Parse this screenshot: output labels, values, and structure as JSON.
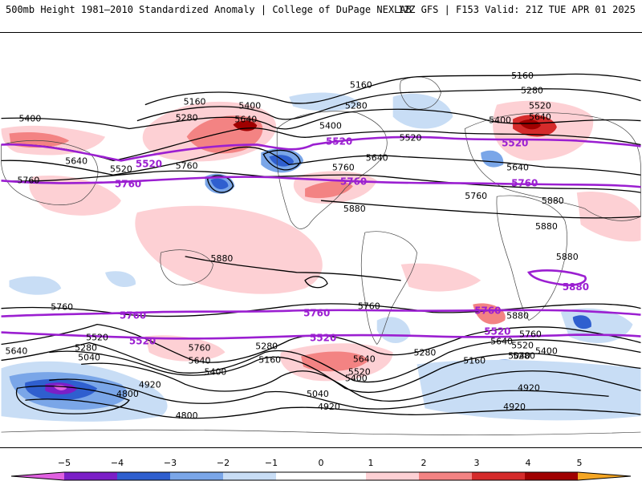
{
  "header": {
    "title": "500mb Height 1981–2010 Standardized Anomaly | College of DuPage NEXLAB",
    "run_info": "12Z GFS | F153 Valid: 21Z TUE APR 01 2025"
  },
  "colors": {
    "pos1": "#fdd0d4",
    "pos2": "#f38383",
    "pos3": "#d52b2b",
    "pos4": "#a00000",
    "pos5": "#f5a623",
    "neg1": "#c8ddf5",
    "neg2": "#7aa6e8",
    "neg3": "#2f5fcf",
    "neg4": "#7b1fc7",
    "neg5": "#e060e0",
    "highlight_contour": "#9b1fd1",
    "contour": "#000000"
  },
  "height_labels": {
    "h5160": "5160",
    "h5280": "5280",
    "h5400": "5400",
    "h5520": "5520",
    "h5640": "5640",
    "h5760": "5760",
    "h5880": "5880",
    "h5040": "5040",
    "h4920": "4920",
    "h4800": "4800"
  },
  "colorbar": {
    "ticks": [
      "−5",
      "−4",
      "−3",
      "−2",
      "−1",
      "0",
      "1",
      "2",
      "3",
      "4",
      "5"
    ]
  }
}
